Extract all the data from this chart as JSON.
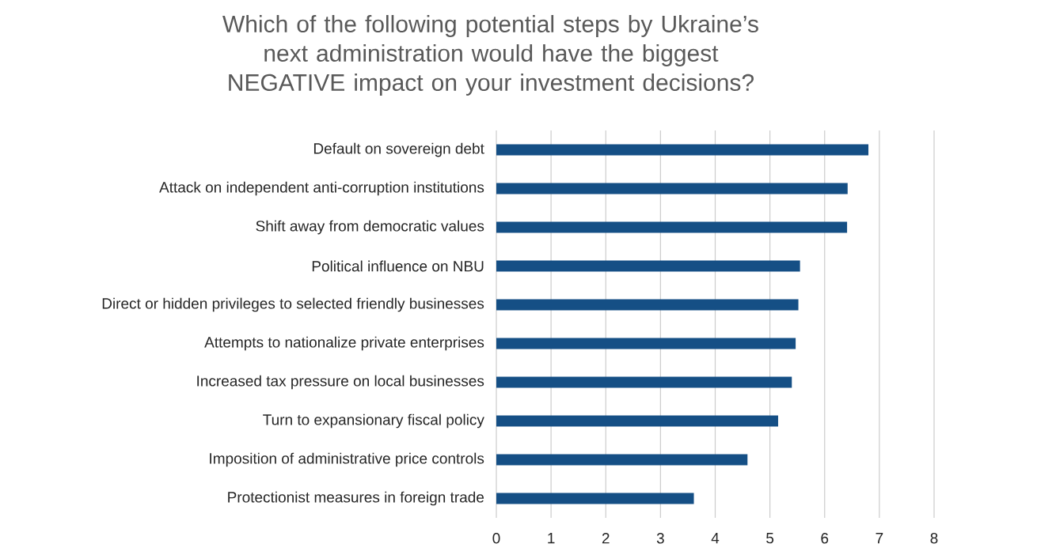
{
  "chart_data": {
    "type": "bar",
    "orientation": "horizontal",
    "title": "Which of the following potential steps by Ukraine’s next administration would have the biggest NEGATIVE impact on your investment decisions?",
    "categories": [
      "Default on sovereign debt",
      "Attack on independent anti-corruption institutions",
      "Shift away from democratic values",
      "Political influence on NBU",
      "Direct or hidden privileges to selected friendly businesses",
      "Attempts to nationalize private enterprises",
      "Increased tax pressure on local businesses",
      "Turn to expansionary fiscal policy",
      "Imposition of administrative price controls",
      "Protectionist measures in foreign trade"
    ],
    "values": [
      6.8,
      6.42,
      6.41,
      5.55,
      5.52,
      5.47,
      5.4,
      5.15,
      4.59,
      3.61
    ],
    "color": "#154f85",
    "xlim": [
      0,
      8
    ],
    "xticks": [
      0,
      1,
      2,
      3,
      4,
      5,
      6,
      7,
      8
    ],
    "grid": "x"
  }
}
